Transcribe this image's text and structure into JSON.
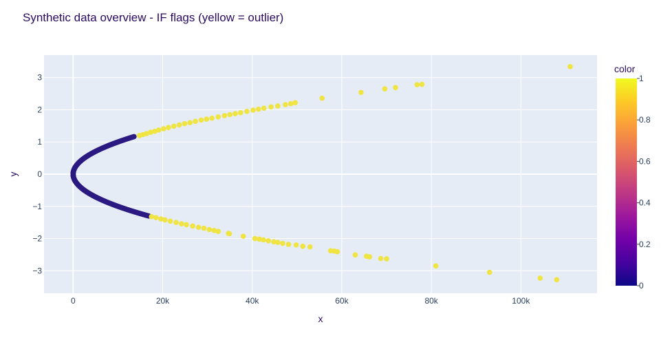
{
  "chart_data": {
    "type": "scatter",
    "title": "Synthetic data overview - IF flags (yellow = outlier)",
    "xlabel": "x",
    "ylabel": "y",
    "xlim": [
      -6500,
      117000
    ],
    "ylim": [
      -3.7,
      3.7
    ],
    "x_ticks": [
      0,
      20000,
      40000,
      60000,
      80000,
      100000
    ],
    "x_tick_labels": [
      "0",
      "20k",
      "40k",
      "60k",
      "80k",
      "100k"
    ],
    "y_ticks": [
      -3,
      -2,
      -1,
      0,
      1,
      2,
      3
    ],
    "y_tick_labels": [
      "−3",
      "−2",
      "−1",
      "0",
      "1",
      "2",
      "3"
    ],
    "grid": true,
    "colorbar": {
      "title": "color",
      "ticks": [
        0,
        0.2,
        0.4,
        0.6,
        0.8,
        1
      ],
      "tick_labels": [
        "0",
        "0.2",
        "0.4",
        "0.6",
        "0.8",
        "1"
      ],
      "colorscale": [
        "#0d0887",
        "#46039f",
        "#7201a8",
        "#9c179e",
        "#bd3786",
        "#d8576b",
        "#ed7953",
        "#fb9f3a",
        "#fdca26",
        "#f0f921"
      ]
    },
    "inlier_color": "#2c1a82",
    "outlier_color": "#efe442",
    "series": [
      {
        "color_value": 0,
        "description_points": "inlier curve x = 10000*y^2",
        "curve": {
          "coef": 10000,
          "y_min": -1.3,
          "y_max": 1.17
        }
      },
      {
        "color_value": 1,
        "points": [
          [
            14800,
            1.2
          ],
          [
            15600,
            1.23
          ],
          [
            16400,
            1.26
          ],
          [
            17300,
            1.3
          ],
          [
            18200,
            1.33
          ],
          [
            19100,
            1.37
          ],
          [
            20200,
            1.41
          ],
          [
            21300,
            1.45
          ],
          [
            22500,
            1.49
          ],
          [
            23700,
            1.53
          ],
          [
            24900,
            1.57
          ],
          [
            26100,
            1.6
          ],
          [
            27300,
            1.64
          ],
          [
            28600,
            1.68
          ],
          [
            29800,
            1.71
          ],
          [
            31000,
            1.74
          ],
          [
            32400,
            1.78
          ],
          [
            33800,
            1.82
          ],
          [
            35000,
            1.85
          ],
          [
            36200,
            1.88
          ],
          [
            37400,
            1.91
          ],
          [
            38800,
            1.95
          ],
          [
            40200,
            1.99
          ],
          [
            41400,
            2.02
          ],
          [
            42600,
            2.05
          ],
          [
            44200,
            2.09
          ],
          [
            45700,
            2.12
          ],
          [
            47400,
            2.16
          ],
          [
            48600,
            2.19
          ],
          [
            49600,
            2.22
          ],
          [
            55600,
            2.36
          ],
          [
            64300,
            2.54
          ],
          [
            69600,
            2.65
          ],
          [
            72000,
            2.69
          ],
          [
            76800,
            2.78
          ],
          [
            77900,
            2.79
          ],
          [
            111000,
            3.34
          ],
          [
            17500,
            -1.32
          ],
          [
            18500,
            -1.35
          ],
          [
            19600,
            -1.39
          ],
          [
            20500,
            -1.42
          ],
          [
            21700,
            -1.46
          ],
          [
            23000,
            -1.5
          ],
          [
            24200,
            -1.54
          ],
          [
            25300,
            -1.57
          ],
          [
            26700,
            -1.61
          ],
          [
            28000,
            -1.65
          ],
          [
            29200,
            -1.68
          ],
          [
            30400,
            -1.72
          ],
          [
            31500,
            -1.75
          ],
          [
            32400,
            -1.78
          ],
          [
            34700,
            -1.84
          ],
          [
            34900,
            -1.85
          ],
          [
            38000,
            -1.93
          ],
          [
            40600,
            -2.0
          ],
          [
            41600,
            -2.02
          ],
          [
            42500,
            -2.04
          ],
          [
            43600,
            -2.07
          ],
          [
            44800,
            -2.1
          ],
          [
            45700,
            -2.12
          ],
          [
            46800,
            -2.15
          ],
          [
            48100,
            -2.18
          ],
          [
            49800,
            -2.2
          ],
          [
            51300,
            -2.24
          ],
          [
            52900,
            -2.26
          ],
          [
            57500,
            -2.38
          ],
          [
            58300,
            -2.39
          ],
          [
            59000,
            -2.41
          ],
          [
            63000,
            -2.51
          ],
          [
            65500,
            -2.55
          ],
          [
            66200,
            -2.57
          ],
          [
            68700,
            -2.62
          ],
          [
            70000,
            -2.63
          ],
          [
            81000,
            -2.85
          ],
          [
            93000,
            -3.05
          ],
          [
            104300,
            -3.23
          ],
          [
            108000,
            -3.28
          ]
        ]
      }
    ]
  }
}
